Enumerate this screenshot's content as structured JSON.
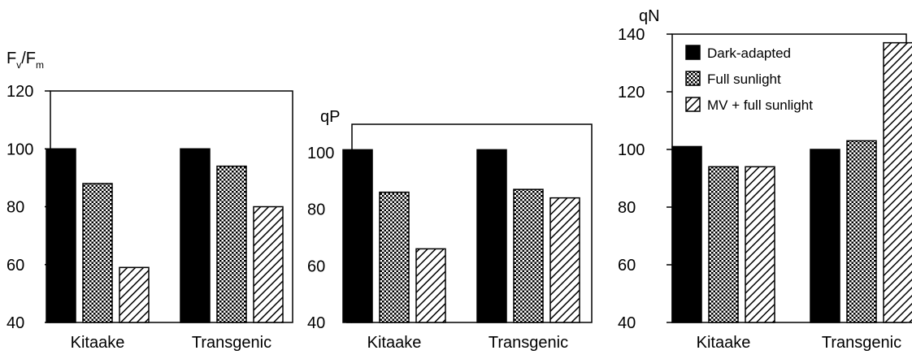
{
  "legend": {
    "entries": [
      {
        "label": "Dark-adapted",
        "pattern": "solid"
      },
      {
        "label": "Full sunlight",
        "pattern": "checker"
      },
      {
        "label": "MV + full sunlight",
        "pattern": "hatch"
      }
    ]
  },
  "colors": {
    "ink": "#000000",
    "background": "#ffffff"
  },
  "chart_data": [
    {
      "type": "bar",
      "ylabel": "Fv/Fm",
      "ylabel_main": "F",
      "ylabel_sub1": "v",
      "ylabel_sep": "/F",
      "ylabel_sub2": "m",
      "categories": [
        "Kitaake",
        "Transgenic"
      ],
      "ylim": [
        40,
        120
      ],
      "yticks": [
        40,
        60,
        80,
        100,
        120
      ],
      "series": [
        {
          "name": "Dark-adapted",
          "values": [
            100,
            100
          ]
        },
        {
          "name": "Full sunlight",
          "values": [
            88,
            94
          ]
        },
        {
          "name": "MV + full sunlight",
          "values": [
            59,
            80
          ]
        }
      ]
    },
    {
      "type": "bar",
      "ylabel": "qP",
      "categories": [
        "Kitaake",
        "Transgenic"
      ],
      "ylim": [
        40,
        110
      ],
      "yticks": [
        40,
        60,
        80,
        100
      ],
      "series": [
        {
          "name": "Dark-adapted",
          "values": [
            101,
            101
          ]
        },
        {
          "name": "Full sunlight",
          "values": [
            86,
            87
          ]
        },
        {
          "name": "MV + full sunlight",
          "values": [
            66,
            84
          ]
        }
      ]
    },
    {
      "type": "bar",
      "ylabel": "qN",
      "categories": [
        "Kitaake",
        "Transgenic"
      ],
      "ylim": [
        40,
        140
      ],
      "yticks": [
        40,
        60,
        80,
        100,
        120,
        140
      ],
      "legend": "top-left",
      "series": [
        {
          "name": "Dark-adapted",
          "values": [
            101,
            100
          ]
        },
        {
          "name": "Full sunlight",
          "values": [
            94,
            103
          ]
        },
        {
          "name": "MV + full sunlight",
          "values": [
            94,
            137
          ]
        }
      ]
    }
  ]
}
